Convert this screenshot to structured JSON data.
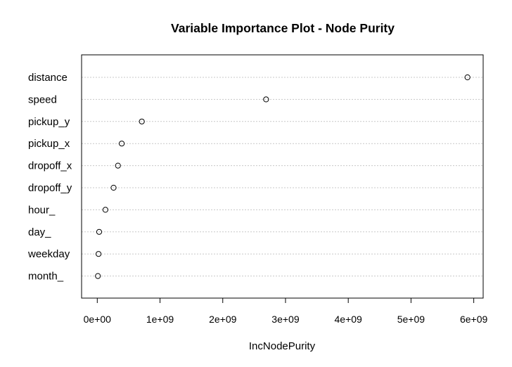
{
  "chart_data": {
    "type": "scatter",
    "title": "Variable Importance Plot - Node Purity",
    "xlabel": "IncNodePurity",
    "ylabel": "",
    "variables": [
      "distance",
      "speed",
      "pickup_y",
      "pickup_x",
      "dropoff_x",
      "dropoff_y",
      "hour_",
      "day_",
      "weekday",
      "month_"
    ],
    "values": [
      5900000000,
      2690000000,
      710000000,
      390000000,
      330000000,
      260000000,
      130000000,
      30000000,
      20000000,
      10000000
    ],
    "xlim": [
      -250000000,
      6150000000
    ],
    "xticks": [
      0,
      1000000000,
      2000000000,
      3000000000,
      4000000000,
      5000000000,
      6000000000
    ],
    "xtick_labels": [
      "0e+00",
      "1e+09",
      "2e+09",
      "3e+09",
      "4e+09",
      "5e+09",
      "6e+09"
    ],
    "grid": "dotted horizontal guide per variable",
    "legend": "none"
  }
}
